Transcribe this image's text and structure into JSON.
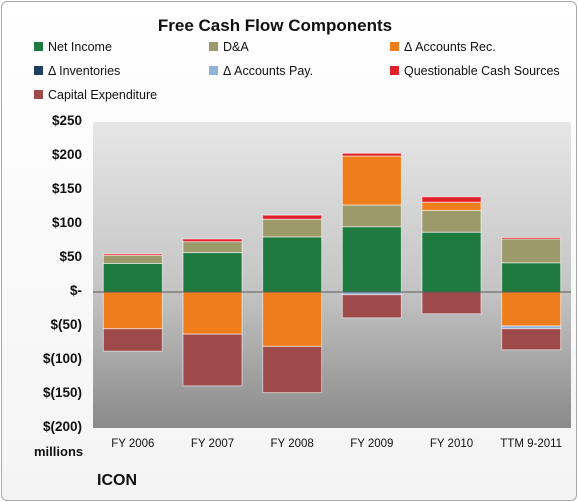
{
  "chart_data": {
    "type": "bar",
    "stacked": true,
    "title": "Free Cash Flow Components",
    "categories": [
      "FY 2006",
      "FY 2007",
      "FY 2008",
      "FY 2009",
      "FY 2010",
      "TTM 9-2011"
    ],
    "y_ticks": [
      "$250",
      "$200",
      "$150",
      "$100",
      "$50",
      "$-",
      "$(50)",
      "$(100)",
      "$(150)",
      "$(200)"
    ],
    "ylim": [
      -200,
      250
    ],
    "units_label": "millions",
    "grid": false,
    "legend_position": "top",
    "series": [
      {
        "name": "Net Income",
        "color": "#1f7a3f",
        "values": [
          42,
          58,
          81,
          96,
          88,
          43
        ]
      },
      {
        "name": "D&A",
        "color": "#9c9a6a",
        "values": [
          12,
          16,
          26,
          32,
          32,
          36
        ]
      },
      {
        "name": "Δ Accounts Rec.",
        "color": "#ef7d1c",
        "values": [
          -54,
          -62,
          -80,
          72,
          12,
          -50
        ]
      },
      {
        "name": "Δ Inventories",
        "color": "#1f3f5f",
        "values": [
          0,
          0,
          0,
          0,
          0,
          0
        ]
      },
      {
        "name": "Δ Accounts Pay.",
        "color": "#8fb3d9",
        "values": [
          0,
          0,
          0,
          -4,
          0,
          -4
        ]
      },
      {
        "name": "Questionable Cash Sources",
        "color": "#e2202c",
        "values": [
          2,
          4,
          6,
          4,
          8,
          1
        ]
      },
      {
        "name": "Capital Expenditure",
        "color": "#9e4a4a",
        "values": [
          -33,
          -76,
          -68,
          -34,
          -32,
          -31
        ]
      }
    ]
  },
  "company": "ICON"
}
